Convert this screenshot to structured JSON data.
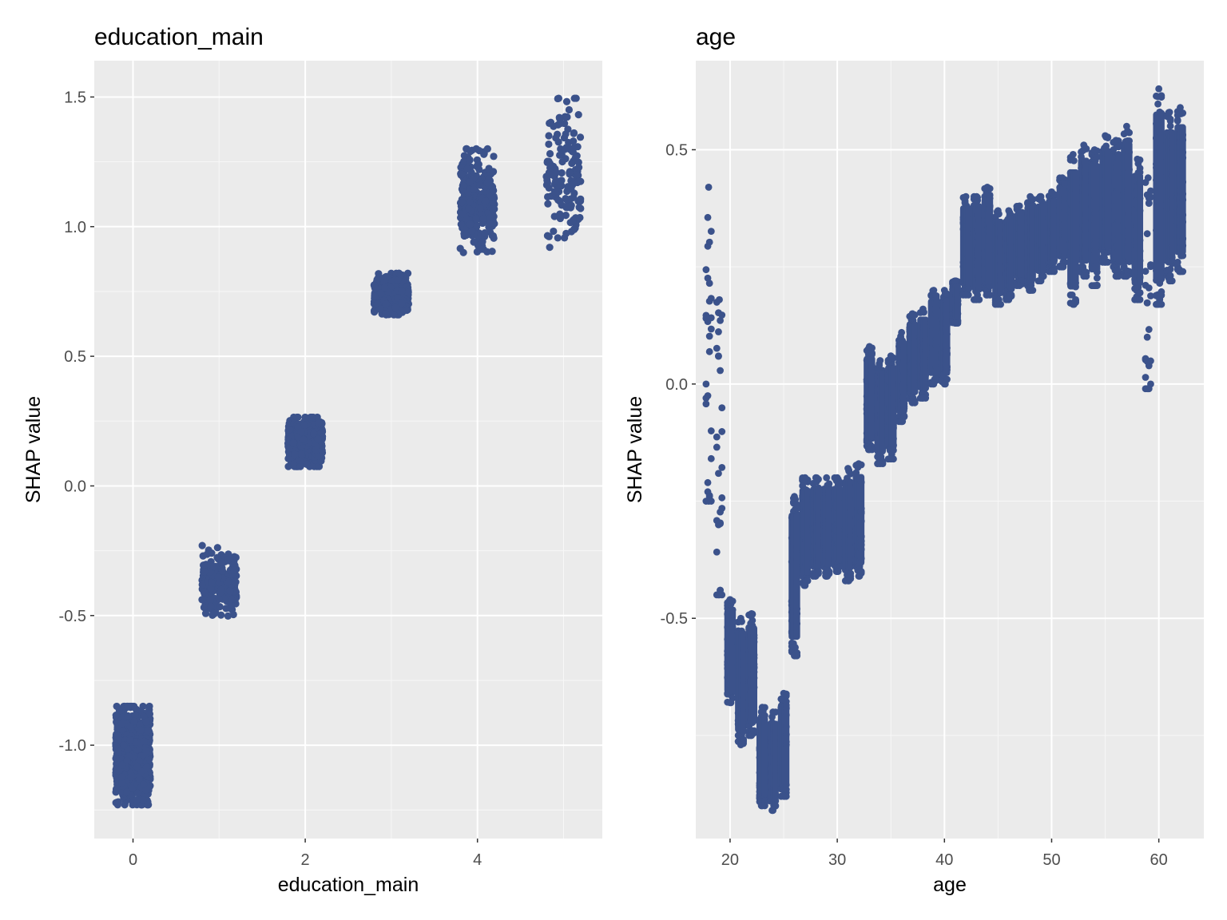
{
  "chart_data": [
    {
      "type": "scatter",
      "title": "education_main",
      "xlabel": "education_main",
      "ylabel": "SHAP value",
      "xlim": [
        -0.45,
        5.45
      ],
      "ylim": [
        -1.36,
        1.64
      ],
      "x_ticks": [
        0,
        2,
        4
      ],
      "x_tick_labels": [
        "0",
        "2",
        "4"
      ],
      "y_ticks": [
        -1.0,
        -0.5,
        0.0,
        0.5,
        1.0,
        1.5
      ],
      "y_tick_labels": [
        "-1.0",
        "-0.5",
        "0.0",
        "0.5",
        "1.0",
        "1.5"
      ],
      "grid": true,
      "point_color": "#3b528b",
      "panel_bg": "#ebebeb",
      "clusters": [
        {
          "x": 0,
          "y_min": -1.23,
          "y_max": -0.85,
          "y_center": -1.04,
          "n": 900
        },
        {
          "x": 1,
          "y_min": -0.48,
          "y_max": -0.2,
          "y_center": -0.37,
          "n": 250
        },
        {
          "x": 2,
          "y_min": 0.07,
          "y_max": 0.26,
          "y_center": 0.17,
          "n": 600
        },
        {
          "x": 3,
          "y_min": 0.66,
          "y_max": 0.82,
          "y_center": 0.74,
          "n": 450
        },
        {
          "x": 4,
          "y_min": 0.92,
          "y_max": 1.32,
          "y_center": 1.1,
          "n": 350
        },
        {
          "x": 5,
          "y_min": 0.91,
          "y_max": 1.5,
          "y_center": 1.2,
          "n": 150
        }
      ]
    },
    {
      "type": "scatter",
      "title": "age",
      "xlabel": "age",
      "ylabel": "SHAP value",
      "xlim": [
        16.8,
        64.2
      ],
      "ylim": [
        -0.97,
        0.69
      ],
      "x_ticks": [
        20,
        30,
        40,
        50,
        60
      ],
      "x_tick_labels": [
        "20",
        "30",
        "40",
        "50",
        "60"
      ],
      "y_ticks": [
        -0.5,
        0.0,
        0.5
      ],
      "y_tick_labels": [
        "-0.5",
        "0.0",
        "0.5"
      ],
      "grid": true,
      "point_color": "#3b528b",
      "panel_bg": "#ebebeb",
      "columns": [
        {
          "age": 18,
          "y_min": -0.25,
          "y_max": 0.42,
          "sparse": true
        },
        {
          "age": 19,
          "y_min": -0.45,
          "y_max": 0.18,
          "sparse": true
        },
        {
          "age": 20,
          "y_min": -0.68,
          "y_max": -0.46
        },
        {
          "age": 21,
          "y_min": -0.77,
          "y_max": -0.5
        },
        {
          "age": 22,
          "y_min": -0.75,
          "y_max": -0.49
        },
        {
          "age": 23,
          "y_min": -0.9,
          "y_max": -0.69
        },
        {
          "age": 24,
          "y_min": -0.91,
          "y_max": -0.7
        },
        {
          "age": 25,
          "y_min": -0.88,
          "y_max": -0.66
        },
        {
          "age": 26,
          "y_min": -0.58,
          "y_max": -0.24
        },
        {
          "age": 27,
          "y_min": -0.43,
          "y_max": -0.2
        },
        {
          "age": 28,
          "y_min": -0.41,
          "y_max": -0.2
        },
        {
          "age": 29,
          "y_min": -0.41,
          "y_max": -0.2
        },
        {
          "age": 30,
          "y_min": -0.4,
          "y_max": -0.2
        },
        {
          "age": 31,
          "y_min": -0.42,
          "y_max": -0.18
        },
        {
          "age": 32,
          "y_min": -0.41,
          "y_max": -0.17
        },
        {
          "age": 33,
          "y_min": -0.14,
          "y_max": 0.08
        },
        {
          "age": 34,
          "y_min": -0.17,
          "y_max": 0.05
        },
        {
          "age": 35,
          "y_min": -0.16,
          "y_max": 0.06
        },
        {
          "age": 36,
          "y_min": -0.08,
          "y_max": 0.11
        },
        {
          "age": 37,
          "y_min": -0.04,
          "y_max": 0.15
        },
        {
          "age": 38,
          "y_min": -0.03,
          "y_max": 0.16
        },
        {
          "age": 39,
          "y_min": 0.0,
          "y_max": 0.2
        },
        {
          "age": 40,
          "y_min": 0.0,
          "y_max": 0.2
        },
        {
          "age": 41,
          "y_min": 0.13,
          "y_max": 0.22
        },
        {
          "age": 42,
          "y_min": 0.19,
          "y_max": 0.4
        },
        {
          "age": 43,
          "y_min": 0.18,
          "y_max": 0.4
        },
        {
          "age": 44,
          "y_min": 0.19,
          "y_max": 0.42
        },
        {
          "age": 45,
          "y_min": 0.17,
          "y_max": 0.37
        },
        {
          "age": 46,
          "y_min": 0.18,
          "y_max": 0.37
        },
        {
          "age": 47,
          "y_min": 0.21,
          "y_max": 0.38
        },
        {
          "age": 48,
          "y_min": 0.2,
          "y_max": 0.4
        },
        {
          "age": 49,
          "y_min": 0.22,
          "y_max": 0.4
        },
        {
          "age": 50,
          "y_min": 0.24,
          "y_max": 0.41
        },
        {
          "age": 51,
          "y_min": 0.25,
          "y_max": 0.44
        },
        {
          "age": 52,
          "y_min": 0.17,
          "y_max": 0.49
        },
        {
          "age": 53,
          "y_min": 0.23,
          "y_max": 0.51
        },
        {
          "age": 54,
          "y_min": 0.21,
          "y_max": 0.5
        },
        {
          "age": 55,
          "y_min": 0.26,
          "y_max": 0.53
        },
        {
          "age": 56,
          "y_min": 0.23,
          "y_max": 0.52
        },
        {
          "age": 57,
          "y_min": 0.23,
          "y_max": 0.55
        },
        {
          "age": 58,
          "y_min": 0.18,
          "y_max": 0.48
        },
        {
          "age": 59,
          "y_min": -0.01,
          "y_max": 0.44,
          "sparse": true
        },
        {
          "age": 60,
          "y_min": 0.17,
          "y_max": 0.63
        },
        {
          "age": 61,
          "y_min": 0.22,
          "y_max": 0.58
        },
        {
          "age": 62,
          "y_min": 0.24,
          "y_max": 0.59
        }
      ]
    }
  ]
}
